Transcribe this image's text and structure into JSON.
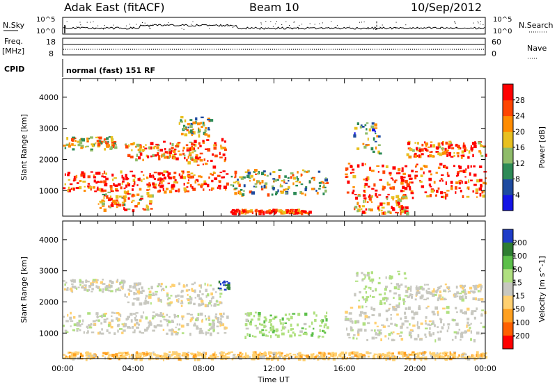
{
  "header": {
    "station": "Adak East (fitACF)",
    "beam": "Beam 10",
    "date": "10/Sep/2012"
  },
  "strip_panels": {
    "nsky": {
      "label": "N.Sky",
      "tick_high": "10^5",
      "tick_low": "10^0",
      "right_label": "N.Search"
    },
    "freq": {
      "label_top": "Freq.",
      "label_bottom": "[MHz]",
      "tick_high": "18",
      "tick_low": "8",
      "right_tick_high": "60",
      "right_tick_low": "0",
      "right_label": "Nave"
    },
    "cpid": {
      "label": "CPID",
      "text": "normal (fast) 151 RF"
    }
  },
  "x_axis": {
    "label": "Time UT",
    "ticks": [
      "00:00",
      "04:00",
      "08:00",
      "12:00",
      "16:00",
      "20:00",
      "00:00"
    ]
  },
  "chart_data": [
    {
      "type": "heatmap",
      "title": "",
      "xlabel": "Time UT",
      "ylabel": "Slant Range [km]",
      "x_range_hours": [
        0,
        24
      ],
      "ylim": [
        180,
        4600
      ],
      "y_ticks": [
        1000,
        2000,
        3000,
        4000
      ],
      "colorbar": {
        "label": "Power [dB]",
        "ticks": [
          "4",
          "8",
          "12",
          "16",
          "20",
          "24",
          "28"
        ],
        "range": [
          0,
          30
        ],
        "colors": [
          "#1414e6",
          "#1e4ba0",
          "#2e8b57",
          "#8fbc6a",
          "#e8c020",
          "#ff8c00",
          "#ff4500",
          "#ff0000"
        ]
      },
      "echo_regions": [
        {
          "t_start": 0.0,
          "t_end": 9.3,
          "r_low": 1000,
          "r_high": 1650,
          "level": 26
        },
        {
          "t_start": 0.0,
          "t_end": 3.0,
          "r_low": 2350,
          "r_high": 2750,
          "level": 18
        },
        {
          "t_start": 3.5,
          "t_end": 7.5,
          "r_low": 2000,
          "r_high": 2600,
          "level": 22
        },
        {
          "t_start": 7.0,
          "t_end": 9.2,
          "r_low": 1800,
          "r_high": 2700,
          "level": 27
        },
        {
          "t_start": 6.5,
          "t_end": 8.5,
          "r_low": 2800,
          "r_high": 3400,
          "level": 14
        },
        {
          "t_start": 2.0,
          "t_end": 5.0,
          "r_low": 400,
          "r_high": 1000,
          "level": 20
        },
        {
          "t_start": 9.5,
          "t_end": 15.0,
          "r_low": 900,
          "r_high": 1700,
          "level": 14
        },
        {
          "t_start": 9.5,
          "t_end": 14.0,
          "r_low": 300,
          "r_high": 420,
          "level": 27
        },
        {
          "t_start": 16.0,
          "t_end": 24.0,
          "r_low": 800,
          "r_high": 1900,
          "level": 27
        },
        {
          "t_start": 16.5,
          "t_end": 18.0,
          "r_low": 2200,
          "r_high": 3200,
          "level": 12
        },
        {
          "t_start": 19.5,
          "t_end": 24.0,
          "r_low": 2100,
          "r_high": 2600,
          "level": 24
        },
        {
          "t_start": 16.5,
          "t_end": 19.5,
          "r_low": 300,
          "r_high": 900,
          "level": 22
        }
      ]
    },
    {
      "type": "heatmap",
      "title": "",
      "xlabel": "Time UT",
      "ylabel": "Slant Range [km]",
      "x_range_hours": [
        0,
        24
      ],
      "ylim": [
        180,
        4600
      ],
      "y_ticks": [
        1000,
        2000,
        3000,
        4000
      ],
      "colorbar": {
        "label": "Velocity [m s^-1]",
        "ticks": [
          "200",
          "100",
          "50",
          "15",
          "-15",
          "-50",
          "-100",
          "-200"
        ],
        "range": [
          -250,
          250
        ],
        "colors": [
          "#1e3cc8",
          "#2e7d32",
          "#5cbf4a",
          "#b0e080",
          "#c8c8c0",
          "#ffd070",
          "#ffa020",
          "#ff6000",
          "#ff0000"
        ]
      },
      "echo_regions": [
        {
          "t_start": 0.0,
          "t_end": 9.3,
          "r_low": 1000,
          "r_high": 1700,
          "level": 0
        },
        {
          "t_start": 0.0,
          "t_end": 3.5,
          "r_low": 2350,
          "r_high": 2750,
          "level": 0
        },
        {
          "t_start": 3.5,
          "t_end": 9.0,
          "r_low": 1900,
          "r_high": 2650,
          "level": 0
        },
        {
          "t_start": 8.8,
          "t_end": 9.4,
          "r_low": 2400,
          "r_high": 2700,
          "level": 220
        },
        {
          "t_start": 10.3,
          "t_end": 15.0,
          "r_low": 900,
          "r_high": 1700,
          "level": 60
        },
        {
          "t_start": 0.0,
          "t_end": 24.0,
          "r_low": 200,
          "r_high": 420,
          "level": -60
        },
        {
          "t_start": 16.0,
          "t_end": 24.0,
          "r_low": 800,
          "r_high": 1900,
          "level": 0
        },
        {
          "t_start": 16.5,
          "t_end": 19.5,
          "r_low": 1900,
          "r_high": 3000,
          "level": 40
        },
        {
          "t_start": 19.5,
          "t_end": 24.0,
          "r_low": 2100,
          "r_high": 2600,
          "level": 0
        }
      ]
    }
  ]
}
